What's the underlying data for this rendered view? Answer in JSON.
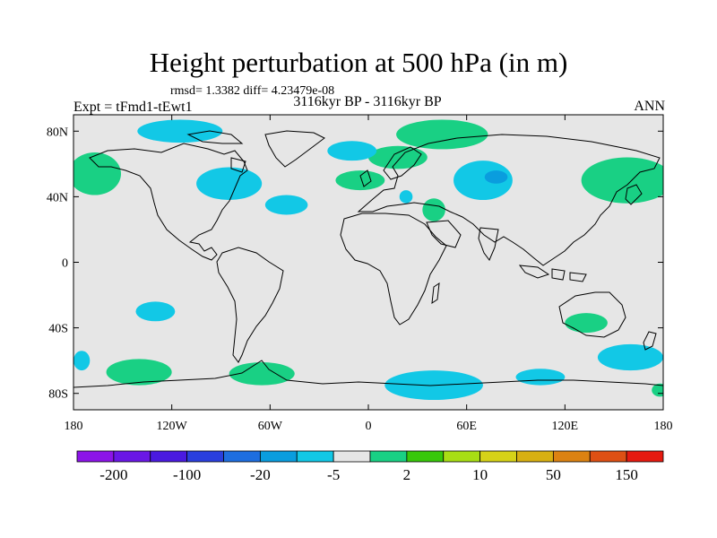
{
  "header": {
    "title": "Height perturbation at 500 hPa (in m)",
    "stats": "rmsd= 1.3382 diff= 4.23479e-08",
    "experiment": "Expt = tFmd1-tEwt1",
    "period": "3116kyr BP - 3116kyr BP",
    "season": "ANN"
  },
  "map": {
    "lon_range": [
      -180,
      180
    ],
    "lat_range": [
      -90,
      90
    ],
    "background_color": "#e6e6e6",
    "lat_ticks": [
      {
        "value": 80,
        "label": "80N"
      },
      {
        "value": 40,
        "label": "40N"
      },
      {
        "value": 0,
        "label": "0"
      },
      {
        "value": -40,
        "label": "40S"
      },
      {
        "value": -80,
        "label": "80S"
      }
    ],
    "lon_ticks": [
      {
        "value": -180,
        "label": "180"
      },
      {
        "value": -120,
        "label": "120W"
      },
      {
        "value": -60,
        "label": "60W"
      },
      {
        "value": 0,
        "label": "0"
      },
      {
        "value": 60,
        "label": "60E"
      },
      {
        "value": 120,
        "label": "120E"
      },
      {
        "value": 180,
        "label": "180"
      }
    ],
    "anomaly_regions": [
      {
        "color": "#19d084",
        "cx": -167,
        "cy": 54,
        "rx": 16,
        "ry": 13
      },
      {
        "color": "#19d084",
        "cx": -140,
        "cy": -67,
        "rx": 20,
        "ry": 8
      },
      {
        "color": "#19d084",
        "cx": -65,
        "cy": -68,
        "rx": 20,
        "ry": 7
      },
      {
        "color": "#19d084",
        "cx": -5,
        "cy": 50,
        "rx": 15,
        "ry": 6
      },
      {
        "color": "#19d084",
        "cx": 45,
        "cy": 78,
        "rx": 28,
        "ry": 9
      },
      {
        "color": "#19d084",
        "cx": 18,
        "cy": 64,
        "rx": 18,
        "ry": 7
      },
      {
        "color": "#19d084",
        "cx": 40,
        "cy": 32,
        "rx": 7,
        "ry": 7
      },
      {
        "color": "#19d084",
        "cx": 158,
        "cy": 50,
        "rx": 28,
        "ry": 14
      },
      {
        "color": "#19d084",
        "cx": 133,
        "cy": -37,
        "rx": 13,
        "ry": 6
      },
      {
        "color": "#19d084",
        "cx": 178,
        "cy": -78,
        "rx": 5,
        "ry": 4
      },
      {
        "color": "#12c8e6",
        "cx": -115,
        "cy": 80,
        "rx": 26,
        "ry": 7
      },
      {
        "color": "#12c8e6",
        "cx": -85,
        "cy": 48,
        "rx": 20,
        "ry": 10
      },
      {
        "color": "#12c8e6",
        "cx": -50,
        "cy": 35,
        "rx": 13,
        "ry": 6
      },
      {
        "color": "#12c8e6",
        "cx": -10,
        "cy": 68,
        "rx": 15,
        "ry": 6
      },
      {
        "color": "#12c8e6",
        "cx": 70,
        "cy": 50,
        "rx": 18,
        "ry": 12
      },
      {
        "color": "#12c8e6",
        "cx": 23,
        "cy": 40,
        "rx": 4,
        "ry": 4
      },
      {
        "color": "#12c8e6",
        "cx": -130,
        "cy": -30,
        "rx": 12,
        "ry": 6
      },
      {
        "color": "#12c8e6",
        "cx": -175,
        "cy": -60,
        "rx": 5,
        "ry": 6
      },
      {
        "color": "#12c8e6",
        "cx": 40,
        "cy": -75,
        "rx": 30,
        "ry": 9
      },
      {
        "color": "#12c8e6",
        "cx": 105,
        "cy": -70,
        "rx": 15,
        "ry": 5
      },
      {
        "color": "#12c8e6",
        "cx": 160,
        "cy": -58,
        "rx": 20,
        "ry": 8
      },
      {
        "color": "#0a9dde",
        "cx": 78,
        "cy": 52,
        "rx": 7,
        "ry": 4
      }
    ]
  },
  "colorbar": {
    "colors": [
      "#8c14e8",
      "#6a17e6",
      "#4a1ae0",
      "#2a3fde",
      "#1e6ee0",
      "#0a9dde",
      "#12c8e6",
      "#e6e6e6",
      "#19d084",
      "#38c80a",
      "#a8de14",
      "#d6d218",
      "#d8b012",
      "#dc8212",
      "#de5014",
      "#e61a10"
    ],
    "labels": [
      {
        "boundary": 1,
        "text": "-200"
      },
      {
        "boundary": 3,
        "text": "-100"
      },
      {
        "boundary": 5,
        "text": "-20"
      },
      {
        "boundary": 7,
        "text": "-5"
      },
      {
        "boundary": 9,
        "text": "2"
      },
      {
        "boundary": 11,
        "text": "10"
      },
      {
        "boundary": 13,
        "text": "50"
      },
      {
        "boundary": 15,
        "text": "150"
      }
    ]
  }
}
